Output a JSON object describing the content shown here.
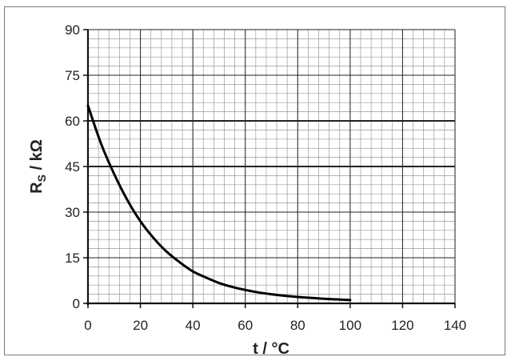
{
  "chart_data": {
    "type": "line",
    "title": "",
    "xlabel": "t / °C",
    "ylabel_main": "R",
    "ylabel_sub": "S",
    "ylabel_tail": " / kΩ",
    "xlim": [
      0,
      140
    ],
    "ylim": [
      0,
      90
    ],
    "x_ticks": [
      "0",
      "20",
      "40",
      "60",
      "80",
      "100",
      "120",
      "140"
    ],
    "y_ticks": [
      "0",
      "15",
      "30",
      "45",
      "60",
      "75",
      "90"
    ],
    "grid": true,
    "series": [
      {
        "x": [
          0,
          5,
          10,
          15,
          20,
          25,
          30,
          35,
          40,
          45,
          50,
          55,
          60,
          65,
          70,
          75,
          80,
          85,
          90,
          95,
          100
        ],
        "y": [
          65,
          52.5,
          42.5,
          34,
          27,
          21.5,
          17,
          13.5,
          10.5,
          8.5,
          6.7,
          5.4,
          4.4,
          3.6,
          3.0,
          2.5,
          2.1,
          1.8,
          1.5,
          1.3,
          1.1
        ]
      }
    ]
  }
}
